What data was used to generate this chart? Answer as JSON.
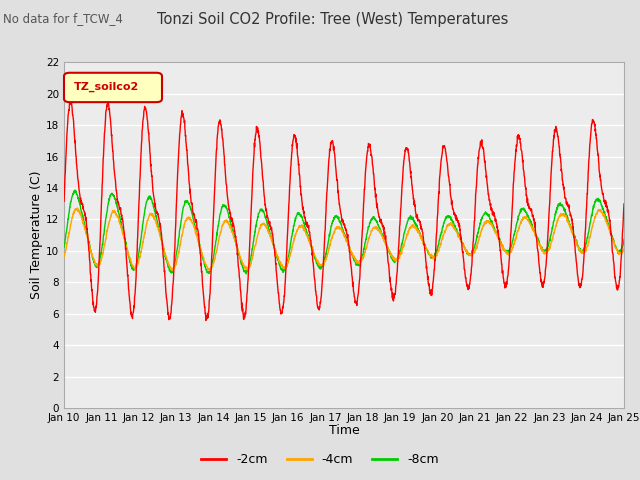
{
  "title": "Tonzi Soil CO2 Profile: Tree (West) Temperatures",
  "subtitle": "No data for f_TCW_4",
  "xlabel": "Time",
  "ylabel": "Soil Temperature (C)",
  "ylim": [
    0,
    22
  ],
  "yticks": [
    0,
    2,
    4,
    6,
    8,
    10,
    12,
    14,
    16,
    18,
    20,
    22
  ],
  "xtick_labels": [
    "Jan 10",
    "Jan 11",
    "Jan 12",
    "Jan 13",
    "Jan 14",
    "Jan 15",
    "Jan 16",
    "Jan 17",
    "Jan 18",
    "Jan 19",
    "Jan 20",
    "Jan 21",
    "Jan 22",
    "Jan 23",
    "Jan 24",
    "Jan 25"
  ],
  "legend_label": "TZ_soilco2",
  "line_labels": [
    "-2cm",
    "-4cm",
    "-8cm"
  ],
  "line_colors": [
    "#ff0000",
    "#ffa500",
    "#00cc00"
  ],
  "bg_color": "#e0e0e0",
  "plot_bg_color": "#ececec",
  "grid_color": "#ffffff",
  "n_days": 15,
  "samples_per_day": 144
}
